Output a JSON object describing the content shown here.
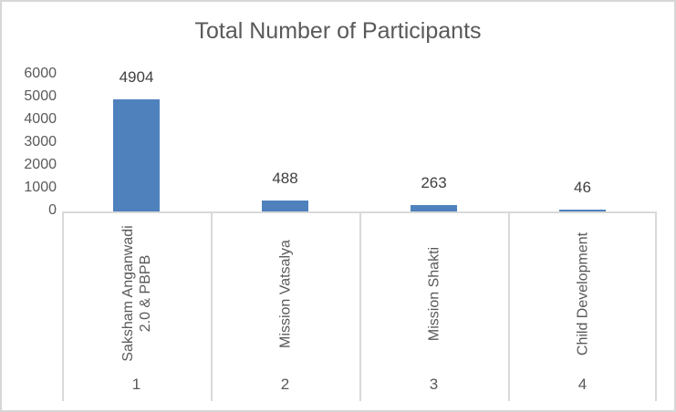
{
  "chart_data": {
    "type": "bar",
    "title": "Total Number of Participants",
    "categories": [
      "Saksham Anganwadi\n2.0 & PBPB",
      "Mission Vatsalya",
      "Mission Shakti",
      "Child Development"
    ],
    "category_numbers": [
      "1",
      "2",
      "3",
      "4"
    ],
    "values": [
      4904,
      488,
      263,
      46
    ],
    "data_labels": [
      "4904",
      "488",
      "263",
      "46"
    ],
    "y_ticks": [
      "6000",
      "5000",
      "4000",
      "3000",
      "2000",
      "1000",
      "0"
    ],
    "y_tick_values": [
      6000,
      5000,
      4000,
      3000,
      2000,
      1000,
      0
    ],
    "ylim": [
      0,
      6000
    ],
    "xlabel": "",
    "ylabel": "",
    "gridlines": false,
    "legend_position": "none",
    "data_label_position": "outside-end",
    "colors": {
      "bar": "#4F81BD",
      "axis_line": "#d9d9d9",
      "axis_text": "#595959",
      "data_label_text": "#404040",
      "title_text": "#595959",
      "chart_border": "#d7d7d7",
      "background": "#ffffff"
    }
  }
}
